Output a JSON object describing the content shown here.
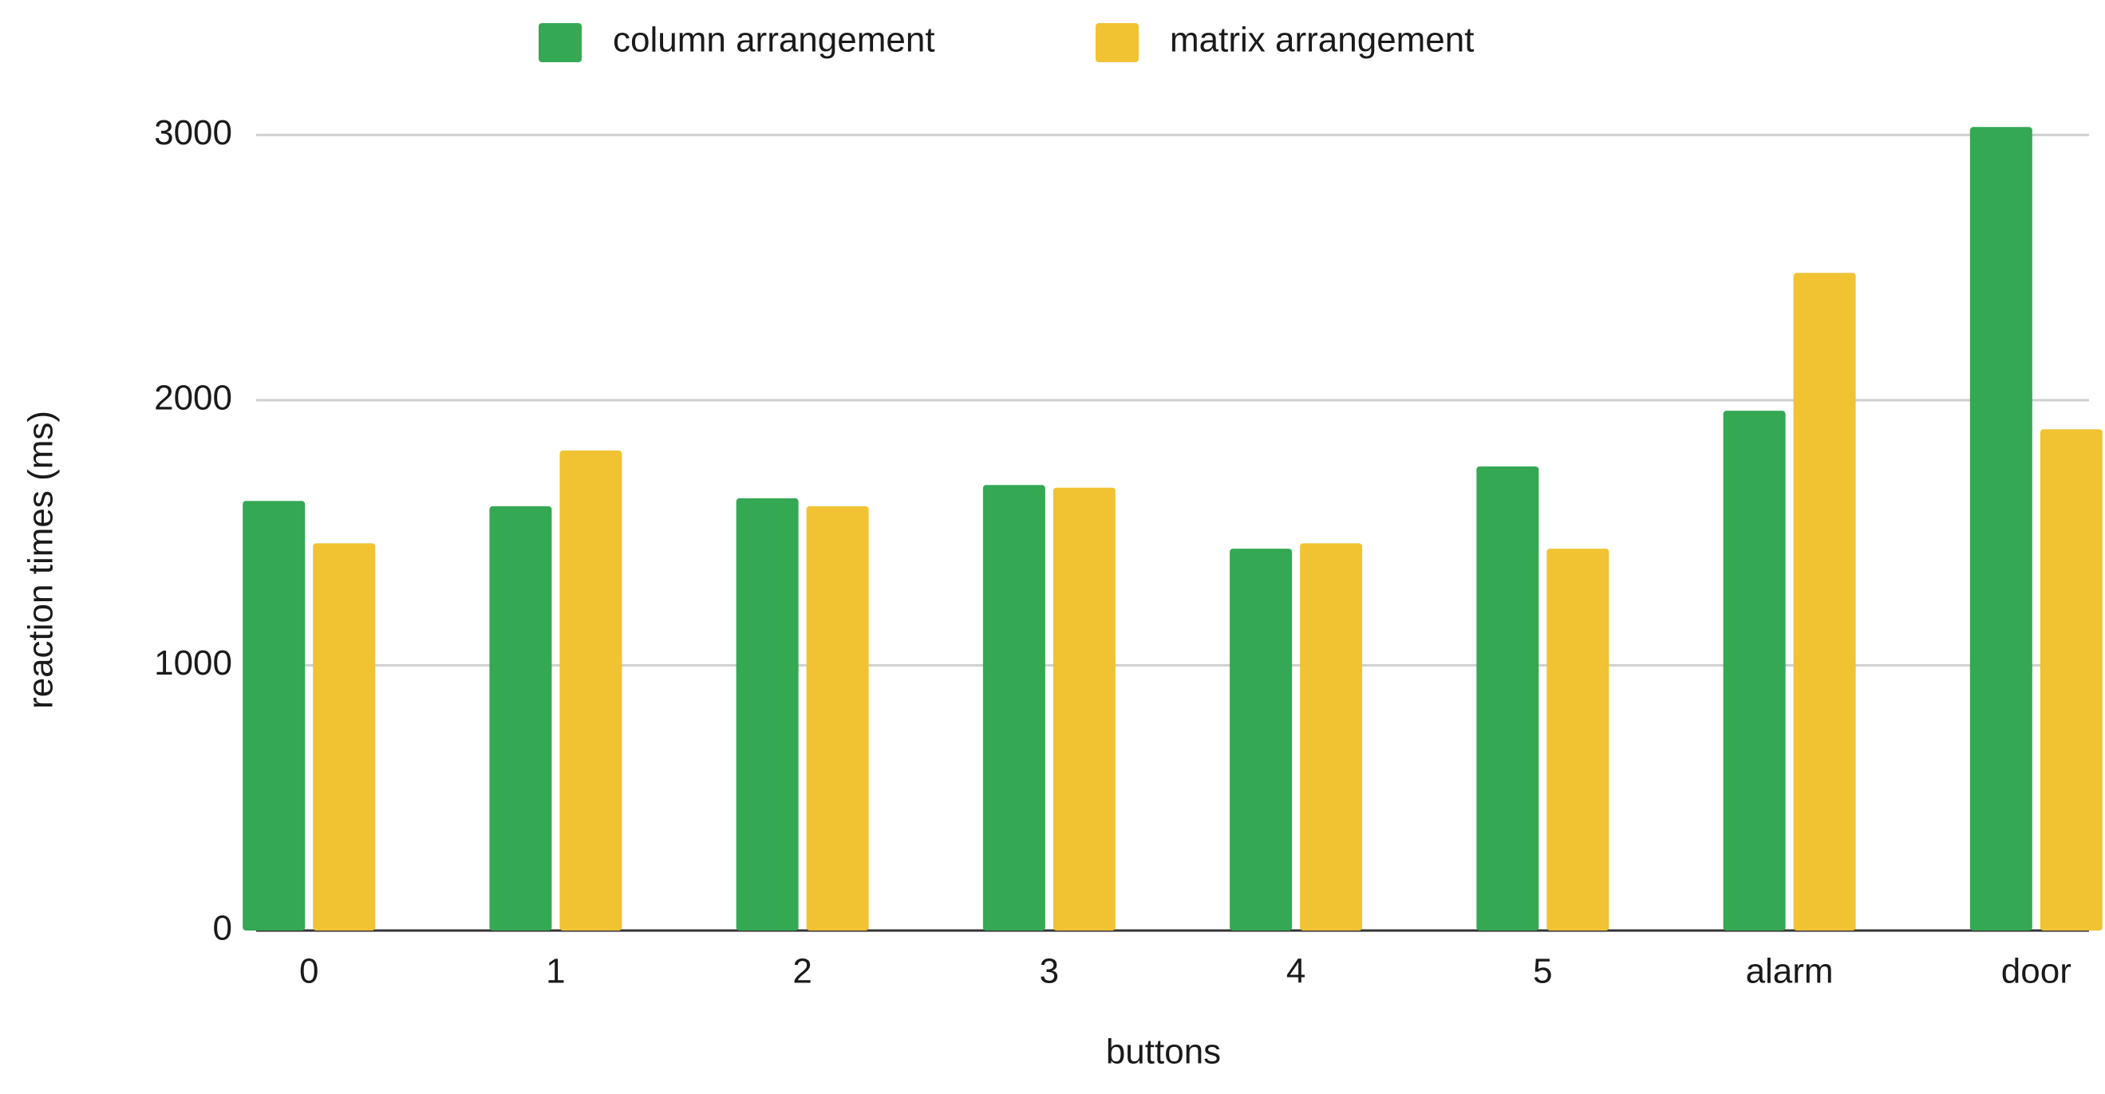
{
  "chart_data": {
    "type": "bar",
    "categories": [
      "0",
      "1",
      "2",
      "3",
      "4",
      "5",
      "alarm",
      "door"
    ],
    "series": [
      {
        "name": "column arrangement",
        "color": "#34a853",
        "values": [
          1620,
          1600,
          1630,
          1680,
          1440,
          1750,
          1960,
          3030
        ]
      },
      {
        "name": "matrix arrangement",
        "color": "#f1c232",
        "values": [
          1460,
          1810,
          1600,
          1670,
          1460,
          1440,
          2480,
          1890
        ]
      }
    ],
    "xlabel": "buttons",
    "ylabel": "reaction times (ms)",
    "ylim": [
      0,
      3100
    ],
    "yticks": [
      0,
      1000,
      2000,
      3000
    ],
    "grid": true,
    "legend": "top"
  }
}
